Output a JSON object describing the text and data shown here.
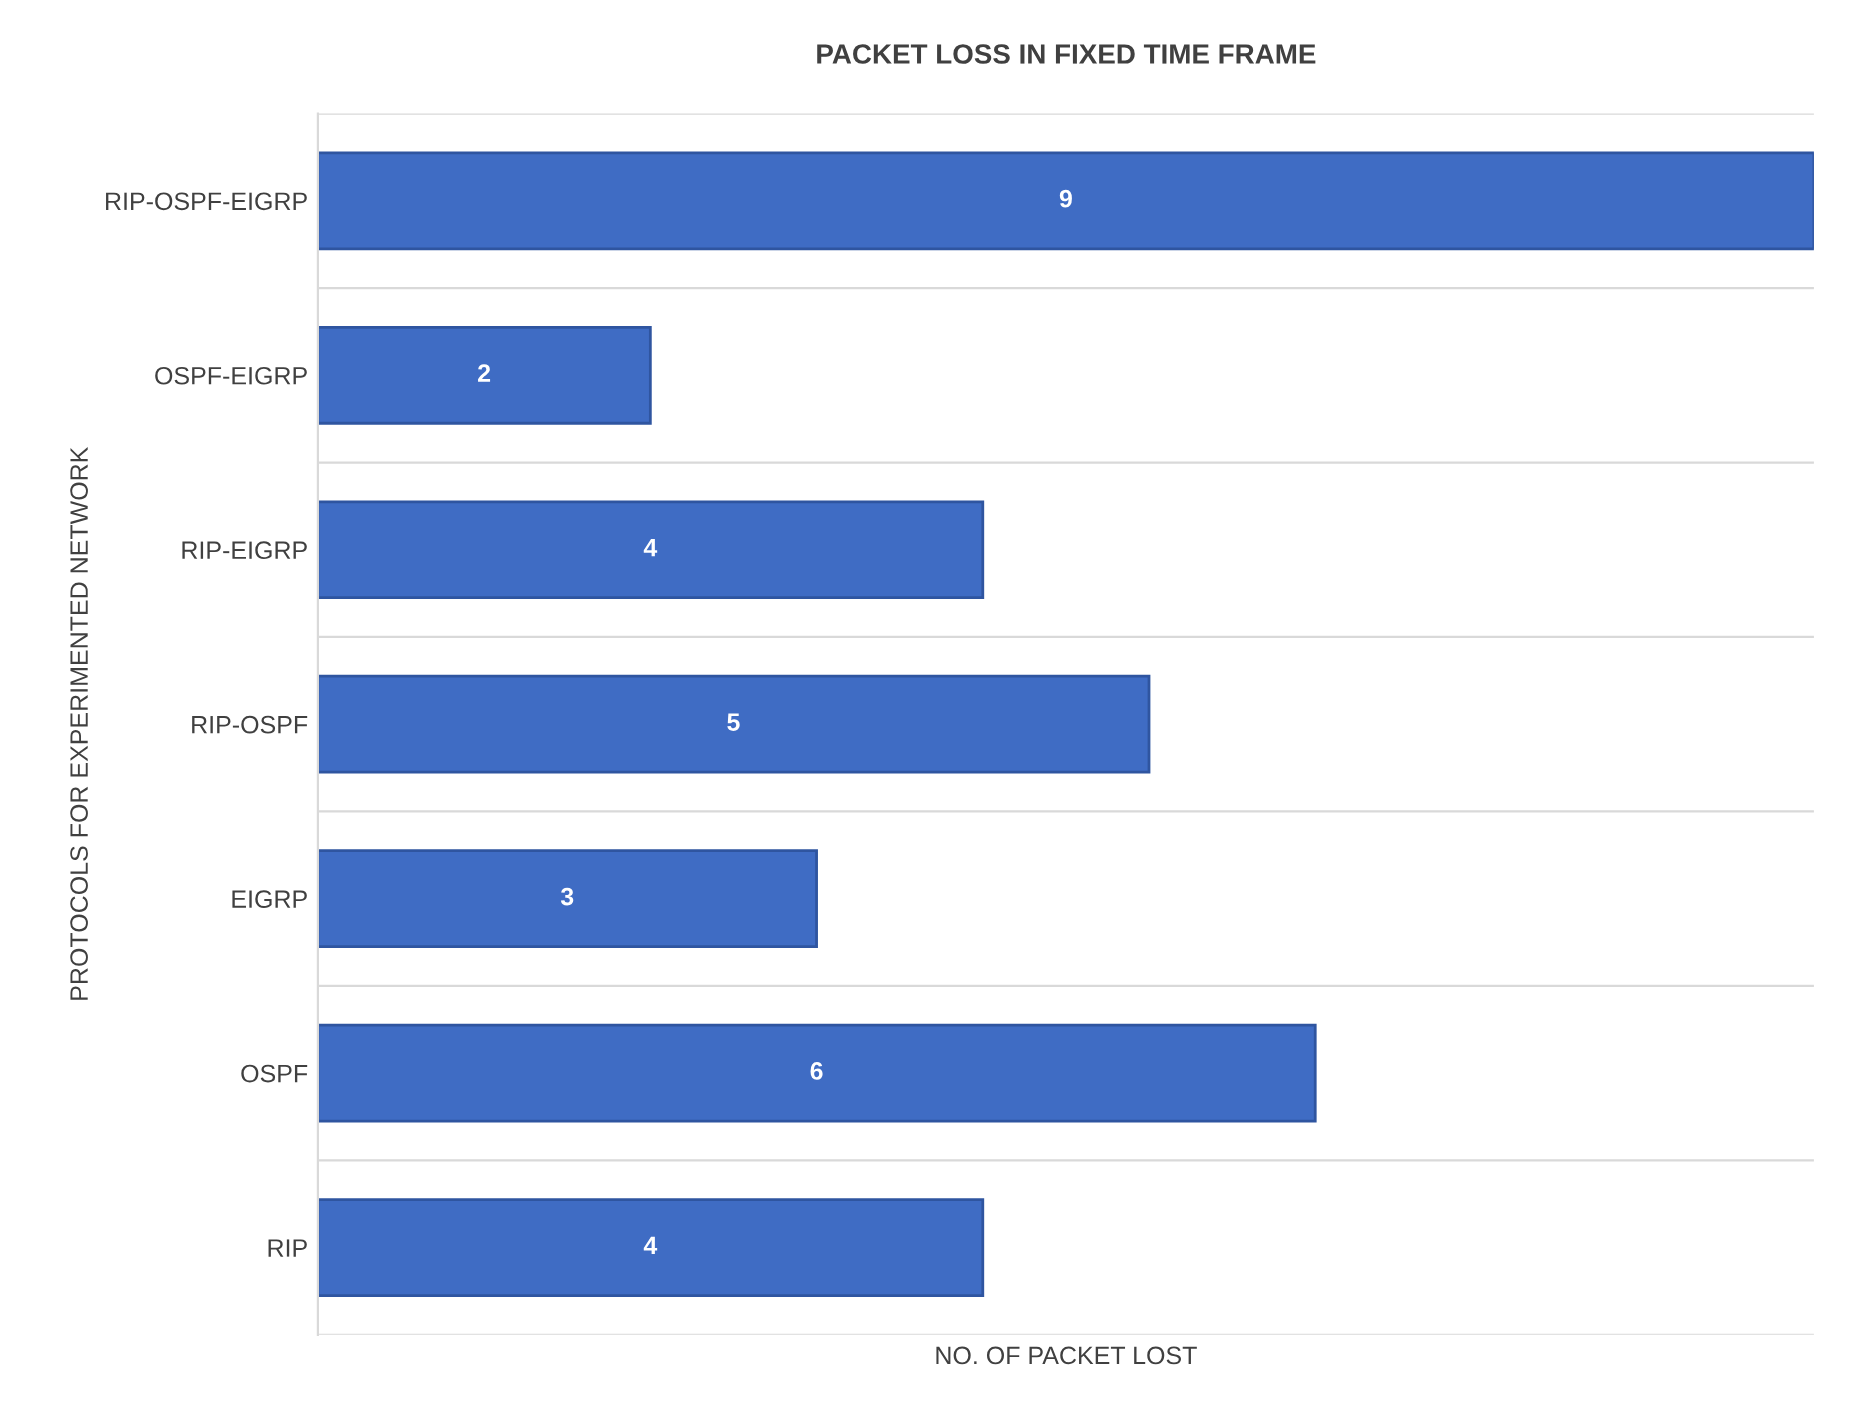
{
  "chart_data": {
    "type": "bar",
    "orientation": "horizontal",
    "title": "PACKET LOSS IN FIXED TIME FRAME",
    "xlabel": "NO. OF PACKET LOST",
    "ylabel": "PROTOCOLS FOR EXPERIMENTED NETWORK",
    "categories": [
      "RIP-OSPF-EIGRP",
      "OSPF-EIGRP",
      "RIP-EIGRP",
      "RIP-OSPF",
      "EIGRP",
      "OSPF",
      "RIP"
    ],
    "values": [
      9,
      2,
      4,
      5,
      3,
      6,
      4
    ],
    "color": "#3f6cc4",
    "xlim": [
      0,
      9
    ],
    "data_labels": true,
    "tick_labels": "y",
    "legend": false,
    "grid": false
  }
}
